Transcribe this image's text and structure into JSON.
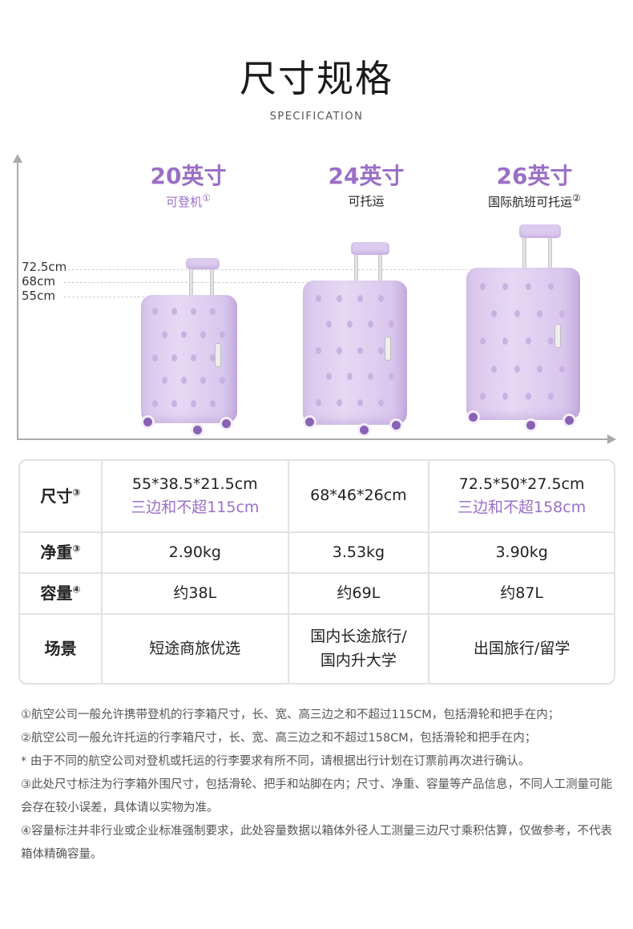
{
  "header": {
    "title": "尺寸规格",
    "subtitle": "SPECIFICATION"
  },
  "accent_color": "#9b6fc6",
  "height_labels": [
    "72.5cm",
    "68cm",
    "55cm"
  ],
  "models": [
    {
      "size": "20英寸",
      "note": "可登机",
      "mark": "①"
    },
    {
      "size": "24英寸",
      "note": "可托运",
      "mark": ""
    },
    {
      "size": "26英寸",
      "note": "国际航班可托运",
      "mark": "②"
    }
  ],
  "table": {
    "rows": [
      {
        "label": "尺寸",
        "mark": "③",
        "cells": [
          {
            "main": "55*38.5*21.5cm",
            "extra": "三边和不超115cm"
          },
          {
            "main": "68*46*26cm",
            "extra": ""
          },
          {
            "main": "72.5*50*27.5cm",
            "extra": "三边和不超158cm"
          }
        ]
      },
      {
        "label": "净重",
        "mark": "③",
        "cells": [
          {
            "main": "2.90kg"
          },
          {
            "main": "3.53kg"
          },
          {
            "main": "3.90kg"
          }
        ]
      },
      {
        "label": "容量",
        "mark": "④",
        "cells": [
          {
            "main": "约38L"
          },
          {
            "main": "约69L"
          },
          {
            "main": "约87L"
          }
        ]
      },
      {
        "label": "场景",
        "mark": "",
        "cells": [
          {
            "main": "短途商旅优选"
          },
          {
            "main": "国内长途旅行/",
            "extra": "国内升大学"
          },
          {
            "main": "出国旅行/留学"
          }
        ]
      }
    ]
  },
  "notes": [
    "①航空公司一般允许携带登机的行李箱尺寸，长、宽、高三边之和不超过115CM，包括滑轮和把手在内；",
    "②航空公司一般允许托运的行李箱尺寸，长、宽、高三边之和不超过158CM，包括滑轮和把手在内；",
    "* 由于不同的航空公司对登机或托运的行李要求有所不同，请根据出行计划在订票前再次进行确认。",
    "③此处尺寸标注为行李箱外围尺寸，包括滑轮、把手和站脚在内；尺寸、净重、容量等产品信息，不同人工测量可能会存在较小误差，具体请以实物为准。",
    "④容量标注并非行业或企业标准强制要求，此处容量数据以箱体外径人工测量三边尺寸乘积估算，仅做参考，不代表箱体精确容量。"
  ]
}
